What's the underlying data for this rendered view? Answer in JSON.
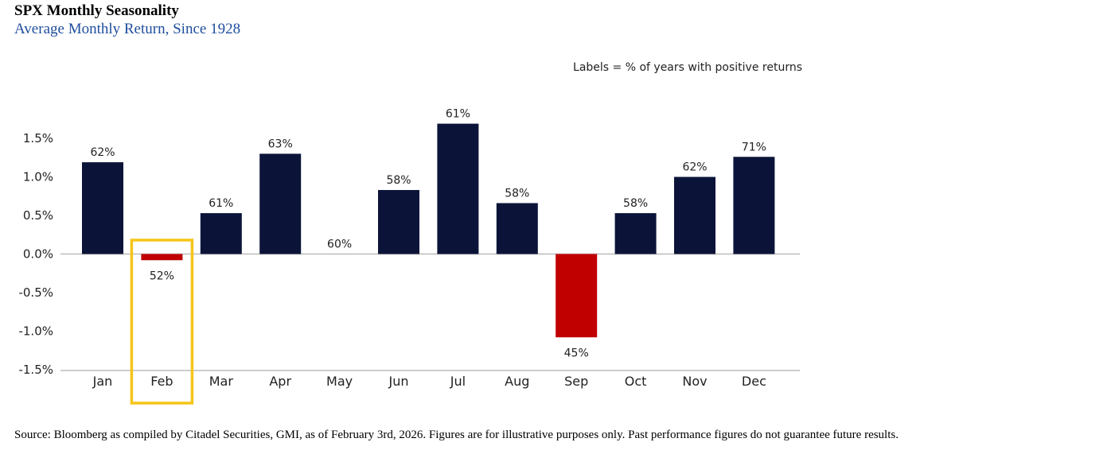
{
  "header": {
    "title": "SPX Monthly Seasonality",
    "subtitle": "Average Monthly Return, Since 1928"
  },
  "footer": {
    "source": "Source: Bloomberg as compiled by Citadel Securities, GMI, as of February 3rd, 2026. Figures are for illustrative purposes only. Past performance figures do not guarantee future results."
  },
  "chart_data": {
    "type": "bar",
    "annotation": "Labels = % of years with positive returns",
    "categories": [
      "Jan",
      "Feb",
      "Mar",
      "Apr",
      "May",
      "Jun",
      "Jul",
      "Aug",
      "Sep",
      "Oct",
      "Nov",
      "Dec"
    ],
    "values": [
      1.19,
      -0.08,
      0.53,
      1.3,
      0.0,
      0.83,
      1.69,
      0.66,
      -1.08,
      0.53,
      1.0,
      1.26
    ],
    "labels": [
      "62%",
      "52%",
      "61%",
      "63%",
      "60%",
      "58%",
      "61%",
      "58%",
      "45%",
      "58%",
      "62%",
      "71%"
    ],
    "ylim": [
      -1.5,
      1.5
    ],
    "yticks": [
      1.5,
      1.0,
      0.5,
      0.0,
      -0.5,
      -1.0,
      -1.5
    ],
    "ytick_labels": [
      "1.5%",
      "1.0%",
      "0.5%",
      "0.0%",
      "-0.5%",
      "-1.0%",
      "-1.5%"
    ],
    "highlight_category": "Feb",
    "colors": {
      "positive": "#0b1438",
      "negative": "#c00000",
      "highlight_box": "#f5c518",
      "axis": "#bbbbbb",
      "text": "#222222"
    },
    "grid": false
  }
}
